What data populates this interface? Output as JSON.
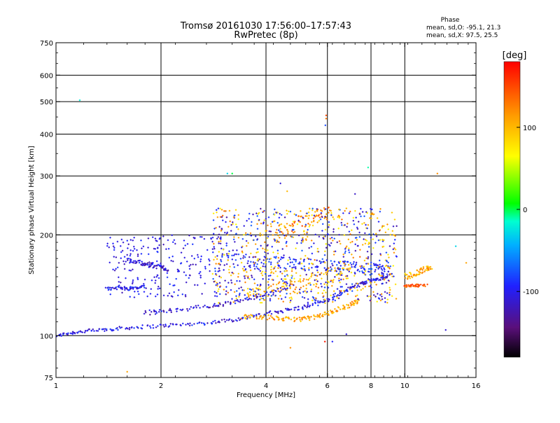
{
  "header": {
    "title_line1": "Tromsø 20161030 17:56:00–17:57:43",
    "title_line2": "RwPretec (8p)",
    "phase_label": "Phase",
    "stat_o": "mean, sd,O: -95.1, 21.3",
    "stat_x": "mean, sd,X:  97.5, 25.5"
  },
  "chart_data": {
    "type": "scatter",
    "xlabel": "Frequency [MHz]",
    "ylabel": "Stationary phase Virtual Height [km]",
    "xscale": "log",
    "yscale": "log",
    "xlim": [
      1,
      16
    ],
    "ylim": [
      75,
      750
    ],
    "xticks": [
      1,
      2,
      4,
      6,
      8,
      10,
      16
    ],
    "xtick_labels": [
      "1",
      "2",
      "4",
      "6",
      "8",
      "10",
      "16"
    ],
    "yticks": [
      75,
      100,
      200,
      300,
      400,
      500,
      600,
      750
    ],
    "ytick_labels": [
      "75",
      "100",
      "200",
      "300",
      "400",
      "500",
      "600",
      "750"
    ],
    "x_grid": [
      2,
      4,
      6,
      8,
      10
    ],
    "y_grid": [
      100,
      200,
      300,
      400,
      500,
      600
    ],
    "colorbar": {
      "label": "[deg]",
      "range": [
        -180,
        180
      ],
      "ticks": [
        -100,
        0,
        100
      ],
      "tick_labels": [
        "-100",
        "0",
        "100"
      ]
    },
    "traces": [
      {
        "x": [
          1.0,
          1.1,
          1.2,
          1.35,
          1.5,
          1.7,
          2.0,
          2.3,
          2.7,
          3.1,
          3.5,
          4.0,
          4.5,
          5.0,
          5.5,
          6.0,
          6.5,
          7.0,
          7.5,
          8.0,
          8.5,
          9.0
        ],
        "y": [
          100,
          102,
          103,
          104,
          105,
          106,
          107,
          108,
          109,
          111,
          113,
          116,
          119,
          121,
          124,
          128,
          133,
          139,
          143,
          146,
          148,
          150
        ],
        "phase": -105,
        "spread": 0.012
      },
      {
        "x": [
          1.8,
          2.0,
          2.3,
          2.7,
          3.0,
          3.4,
          3.8,
          4.3,
          4.8
        ],
        "y": [
          117,
          118,
          120,
          122,
          124,
          127,
          131,
          137,
          142
        ],
        "phase": -110,
        "spread": 0.015
      },
      {
        "x": [
          3.4,
          3.8,
          4.2,
          4.6,
          5.0,
          5.4,
          5.8,
          6.2,
          6.6,
          7.0,
          7.4
        ],
        "y": [
          114,
          114,
          113,
          112,
          112,
          113,
          115,
          118,
          121,
          124,
          127
        ],
        "phase": 110,
        "spread": 0.015
      },
      {
        "x": [
          1.4,
          1.5,
          1.6,
          1.7,
          1.8
        ],
        "y": [
          138,
          139,
          138,
          139,
          140
        ],
        "phase": -100,
        "spread": 0.01
      },
      {
        "x": [
          1.6,
          1.7,
          1.8,
          1.9,
          2.0,
          2.1
        ],
        "y": [
          168,
          166,
          164,
          162,
          160,
          158
        ],
        "phase": -110,
        "spread": 0.015
      },
      {
        "x": [
          3.0,
          3.5,
          4.0,
          4.5,
          5.0,
          5.5,
          6.0,
          6.5,
          7.0,
          7.5,
          8.0,
          8.5,
          9.0
        ],
        "y": [
          170,
          168,
          166,
          165,
          164,
          163,
          162,
          161,
          160,
          159,
          158,
          157,
          156
        ],
        "phase": -95,
        "spread": 0.04
      },
      {
        "x": [
          3.5,
          4.0,
          4.5,
          5.0,
          5.5,
          6.0,
          6.5,
          7.0
        ],
        "y": [
          132,
          135,
          138,
          141,
          145,
          149,
          153,
          157
        ],
        "phase": 105,
        "spread": 0.05
      },
      {
        "x": [
          4.2,
          4.6,
          5.0,
          5.4,
          5.8,
          6.2
        ],
        "y": [
          200,
          210,
          218,
          225,
          230,
          232
        ],
        "phase": 125,
        "spread": 0.05
      },
      {
        "x": [
          10.0,
          10.5,
          11.0,
          11.5,
          12.0
        ],
        "y": [
          150,
          152,
          155,
          158,
          162
        ],
        "phase": 105,
        "spread": 0.02
      },
      {
        "x": [
          10.0,
          10.5,
          11.0,
          11.5
        ],
        "y": [
          140,
          141,
          141,
          142
        ],
        "phase": 140,
        "spread": 0.01
      }
    ],
    "outliers": [
      {
        "x": 1.17,
        "y": 505,
        "phase": -20
      },
      {
        "x": 5.95,
        "y": 455,
        "phase": 150
      },
      {
        "x": 5.95,
        "y": 445,
        "phase": 130
      },
      {
        "x": 5.92,
        "y": 425,
        "phase": -80
      },
      {
        "x": 3.1,
        "y": 305,
        "phase": -30
      },
      {
        "x": 3.2,
        "y": 305,
        "phase": 0
      },
      {
        "x": 7.85,
        "y": 318,
        "phase": -10
      },
      {
        "x": 12.4,
        "y": 305,
        "phase": 120
      },
      {
        "x": 4.4,
        "y": 285,
        "phase": -110
      },
      {
        "x": 4.6,
        "y": 270,
        "phase": 100
      },
      {
        "x": 7.2,
        "y": 265,
        "phase": -115
      },
      {
        "x": 6.8,
        "y": 240,
        "phase": 100
      },
      {
        "x": 1.6,
        "y": 78,
        "phase": 110
      },
      {
        "x": 4.7,
        "y": 92,
        "phase": 120
      },
      {
        "x": 6.2,
        "y": 96,
        "phase": -95
      },
      {
        "x": 5.9,
        "y": 96,
        "phase": 170
      },
      {
        "x": 6.8,
        "y": 101,
        "phase": -110
      },
      {
        "x": 13.1,
        "y": 104,
        "phase": -110
      },
      {
        "x": 15.0,
        "y": 165,
        "phase": 110
      },
      {
        "x": 14.0,
        "y": 185,
        "phase": -30
      }
    ]
  }
}
